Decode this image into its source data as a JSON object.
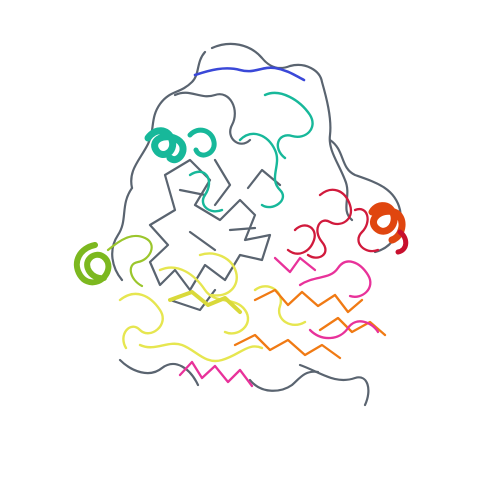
{
  "scene": {
    "subject": "protein-backbone-ribbon-render",
    "background": "#ffffff",
    "palette": {
      "coil": "#5a6470",
      "blue": "#3a48d8",
      "teal": "#17b89a",
      "green": "#7cb81f",
      "yellow": "#e6e650",
      "orange": "#f07a14",
      "pink": "#e8329a",
      "red": "#d11a3c",
      "orange_red": "#e0460f"
    }
  }
}
